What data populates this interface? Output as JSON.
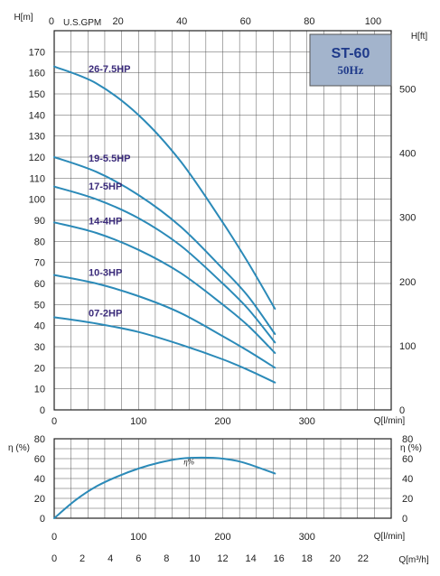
{
  "badge": {
    "title": "ST-60",
    "subtitle": "50Hz"
  },
  "colors": {
    "curve": "#2b8ab8",
    "label": "#3a2a7a",
    "badge_fill": "#a3b4cc",
    "badge_text": "#1f3a8a"
  },
  "top_axis": {
    "unit": "U.S.GPM",
    "ticks": [
      "0",
      "20",
      "40",
      "60",
      "80",
      "100"
    ]
  },
  "head_axis": {
    "label": "H[m]",
    "ticks": [
      "0",
      "10",
      "20",
      "30",
      "40",
      "50",
      "60",
      "70",
      "80",
      "90",
      "100",
      "110",
      "120",
      "130",
      "140",
      "150",
      "160",
      "170"
    ]
  },
  "feet_axis": {
    "label": "H[ft]",
    "ticks": [
      "0",
      "100",
      "200",
      "300",
      "400",
      "500"
    ]
  },
  "flow_axis": {
    "label": "Q[l/min]",
    "ticks": [
      "0",
      "100",
      "200",
      "300"
    ]
  },
  "eff_axis": {
    "label_left": "η (%)",
    "label_right": "η (%)",
    "ticks": [
      "0",
      "20",
      "40",
      "60",
      "80"
    ]
  },
  "m3h_axis": {
    "label": "Q[m³/h]",
    "ticks": [
      "0",
      "2",
      "4",
      "6",
      "8",
      "10",
      "12",
      "14",
      "16",
      "18",
      "20",
      "22"
    ]
  },
  "chart_data": [
    {
      "type": "line",
      "title": "ST-60 50Hz",
      "xlabel": "Q[l/min]",
      "ylabel": "H[m]",
      "secondary_ylabel": "H[ft]",
      "secondary_xlabel": "U.S.GPM",
      "xlim": [
        0,
        400
      ],
      "ylim": [
        0,
        180
      ],
      "grid": true,
      "series": [
        {
          "name": "26-7.5HP",
          "x": [
            0,
            50,
            100,
            150,
            200,
            230,
            262
          ],
          "y": [
            163,
            155,
            140,
            118,
            89,
            70,
            48
          ]
        },
        {
          "name": "19-5.5HP",
          "x": [
            0,
            50,
            100,
            150,
            200,
            230,
            262
          ],
          "y": [
            120,
            113,
            102,
            87,
            67,
            54,
            36
          ]
        },
        {
          "name": "17-5HP",
          "x": [
            0,
            50,
            100,
            150,
            200,
            230,
            262
          ],
          "y": [
            106,
            100,
            91,
            78,
            60,
            48,
            32
          ]
        },
        {
          "name": "14-4HP",
          "x": [
            0,
            50,
            100,
            150,
            200,
            230,
            262
          ],
          "y": [
            89,
            84,
            76,
            65,
            50,
            40,
            27
          ]
        },
        {
          "name": "10-3HP",
          "x": [
            0,
            50,
            100,
            150,
            200,
            230,
            262
          ],
          "y": [
            64,
            60,
            54,
            46,
            35,
            28,
            20
          ]
        },
        {
          "name": "07-2HP",
          "x": [
            0,
            50,
            100,
            150,
            200,
            230,
            262
          ],
          "y": [
            44,
            41,
            37,
            31,
            24,
            19,
            13
          ]
        }
      ]
    },
    {
      "type": "line",
      "xlabel": "Q[l/min]",
      "ylabel": "η (%)",
      "secondary_xlabel": "Q[m³/h]",
      "xlim": [
        0,
        400
      ],
      "ylim": [
        0,
        80
      ],
      "grid": true,
      "series": [
        {
          "name": "η%",
          "x": [
            0,
            25,
            50,
            75,
            100,
            125,
            150,
            175,
            200,
            225,
            262
          ],
          "y": [
            0,
            18,
            32,
            42,
            50,
            56,
            60,
            61,
            60,
            56,
            45
          ]
        }
      ]
    }
  ]
}
